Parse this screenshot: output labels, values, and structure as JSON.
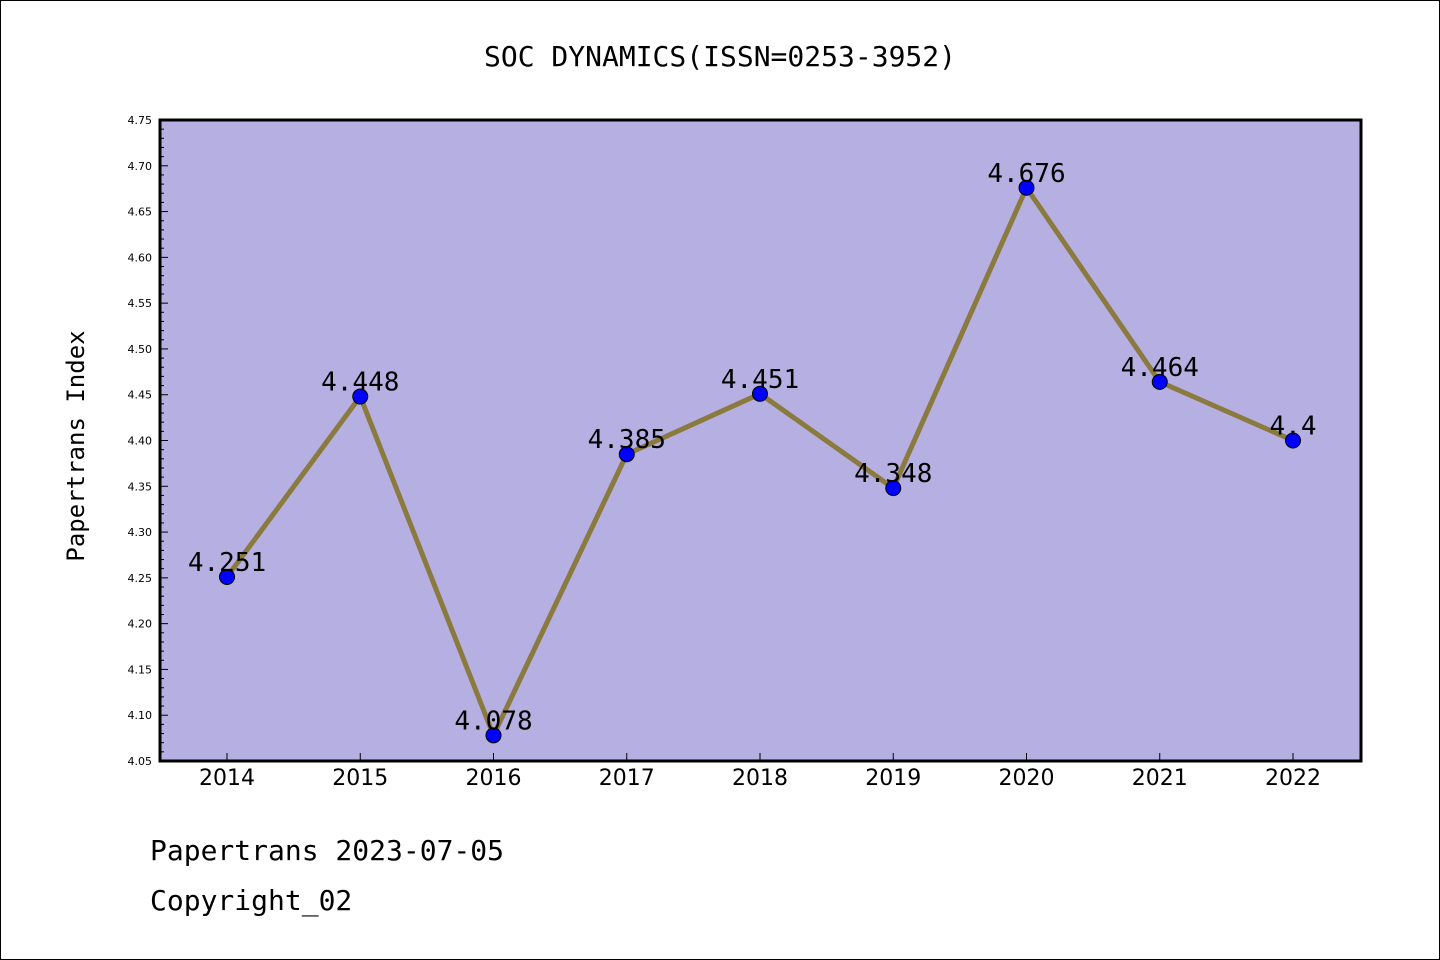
{
  "chart_data": {
    "type": "line",
    "title": "SOC DYNAMICS(ISSN=0253-3952)",
    "xlabel": "",
    "ylabel": "Papertrans Index",
    "categories": [
      "2014",
      "2015",
      "2016",
      "2017",
      "2018",
      "2019",
      "2020",
      "2021",
      "2022"
    ],
    "values": [
      4.251,
      4.448,
      4.078,
      4.385,
      4.451,
      4.348,
      4.676,
      4.464,
      4.4
    ],
    "data_labels": [
      "4.251",
      "4.448",
      "4.078",
      "4.385",
      "4.451",
      "4.348",
      "4.676",
      "4.464",
      "4.4"
    ],
    "ylim": [
      4.05,
      4.75
    ],
    "yticks": [
      "4.05",
      "4.10",
      "4.15",
      "4.20",
      "4.25",
      "4.30",
      "4.35",
      "4.40",
      "4.45",
      "4.50",
      "4.55",
      "4.60",
      "4.65",
      "4.70",
      "4.75"
    ],
    "grid": false,
    "legend": "none",
    "colors": {
      "plot_background": "#b5afe2",
      "line": "#8b7a3e",
      "marker": "#0000ff"
    }
  },
  "footer": {
    "line1": "Papertrans 2023-07-05",
    "line2": "Copyright_02"
  }
}
